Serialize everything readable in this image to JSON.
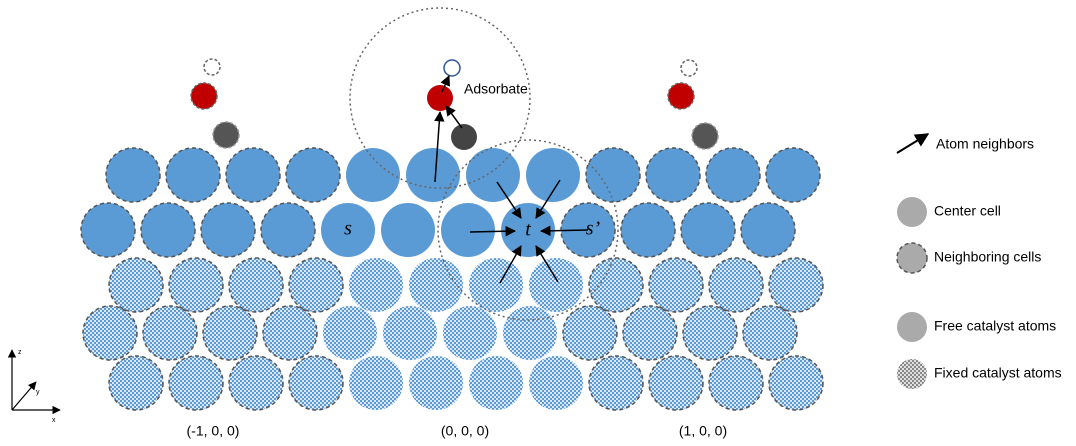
{
  "adsorbate_label": "Adsorbate",
  "site_labels": {
    "s": "s",
    "t": "t",
    "s_prime": "s’"
  },
  "cell_labels": [
    "(-1, 0, 0)",
    "(0, 0, 0)",
    "(1, 0, 0)"
  ],
  "axes": {
    "z": "z",
    "y": "y",
    "x": "x"
  },
  "legend": [
    "Atom neighbors",
    "Center cell",
    "Neighboring cells",
    "Free catalyst atoms",
    "Fixed catalyst atoms"
  ]
}
